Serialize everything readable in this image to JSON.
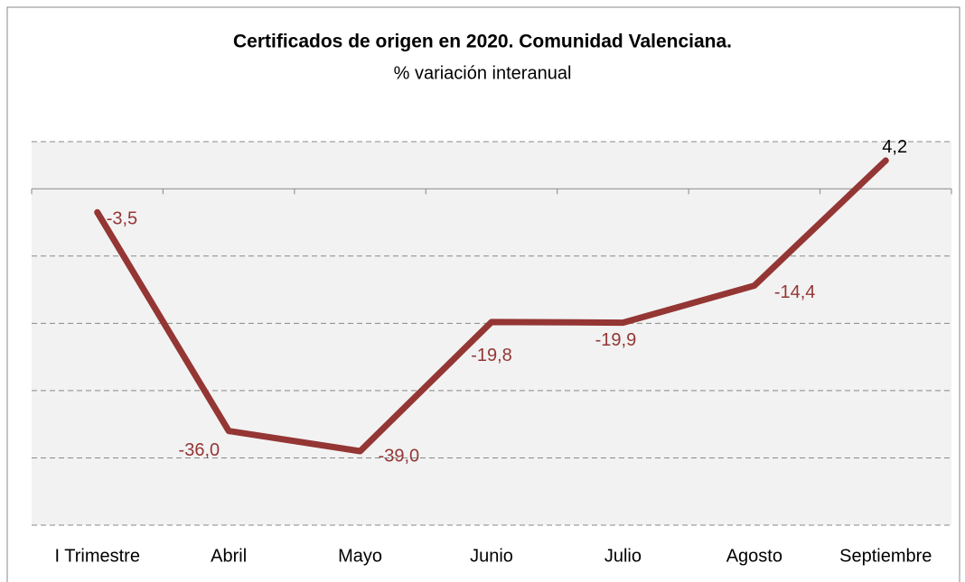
{
  "chart_data": {
    "type": "line",
    "title": "Certificados de origen en 2020. Comunidad Valenciana.",
    "subtitle": "% variación interanual",
    "categories": [
      "I Trimestre",
      "Abril",
      "Mayo",
      "Junio",
      "Julio",
      "Agosto",
      "Septiembre"
    ],
    "series": [
      {
        "name": "% variación interanual",
        "color": "#943634",
        "values": [
          -3.5,
          -36.0,
          -39.0,
          -19.8,
          -19.9,
          -14.4,
          4.2
        ],
        "value_labels": [
          "-3,5",
          "-36,0",
          "-39,0",
          "-19,8",
          "-19,9",
          "-14,4",
          "4,2"
        ],
        "value_label_colors": [
          "#943634",
          "#943634",
          "#943634",
          "#943634",
          "#943634",
          "#943634",
          "#000000"
        ]
      }
    ],
    "ylim": [
      -50,
      7
    ],
    "yticks": [
      -50,
      -40,
      -30,
      -20,
      -10,
      0
    ],
    "grid": true
  }
}
